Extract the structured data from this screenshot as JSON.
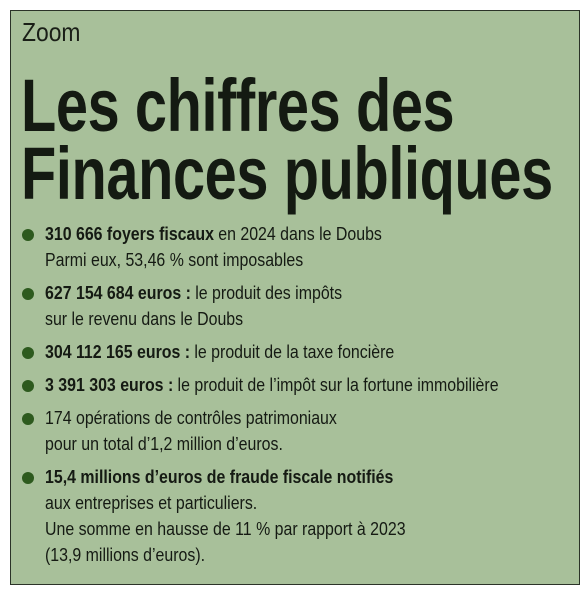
{
  "header": {
    "kicker": "Zoom",
    "title": [
      "Les chiffres des",
      "Finances publiques"
    ]
  },
  "items": [
    {
      "lines": [
        {
          "bold": "310 666 foyers fiscaux",
          "text": "en 2024 dans le Doubs"
        },
        {
          "text": "Parmi eux, 53,46 % sont imposables"
        }
      ]
    },
    {
      "lines": [
        {
          "bold": "627 154 684 euros :",
          "text": "le produit des impôts"
        },
        {
          "text": "sur le revenu dans le Doubs"
        }
      ]
    },
    {
      "lines": [
        {
          "bold": "304 112 165 euros :",
          "text": "le produit de la taxe foncière"
        }
      ]
    },
    {
      "lines": [
        {
          "bold": "3 391 303 euros :",
          "text": "le produit de l’impôt sur la fortune immobilière"
        }
      ]
    },
    {
      "lines": [
        {
          "text": "174 opérations de contrôles patrimoniaux"
        },
        {
          "text": "pour un total d’1,2 million d’euros."
        }
      ]
    },
    {
      "lines": [
        {
          "bold": "15,4 millions d’euros de fraude fiscale notifiés"
        },
        {
          "text": "aux entreprises et particuliers."
        },
        {
          "text": "Une somme en hausse de 11 % par rapport à 2023"
        },
        {
          "text": "(13,9 millions d’euros)."
        }
      ]
    }
  ]
}
